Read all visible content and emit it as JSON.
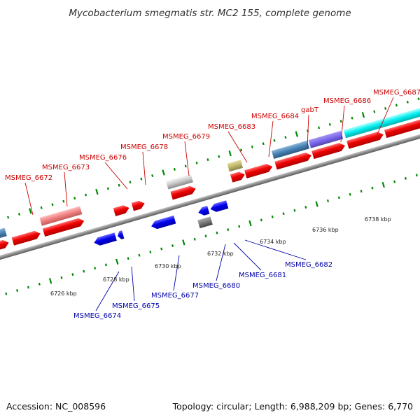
{
  "title": "Mycobacterium smegmatis str. MC2 155, complete genome",
  "accession": "Accession: NC_008596",
  "summary": "Topology: circular; Length: 6,988,209 bp; Genes: 6,770",
  "colors": {
    "forward_label": "#cc0000",
    "reverse_label": "#0000aa",
    "forward_gene": "#ee0000",
    "reverse_gene": "#0000ee",
    "backbone": "#888888",
    "tick": "#008800"
  },
  "scale_labels": [
    {
      "text": "6726 kbp"
    },
    {
      "text": "6728 kbp"
    },
    {
      "text": "6730 kbp"
    },
    {
      "text": "6732 kbp"
    },
    {
      "text": "6734 kbp"
    },
    {
      "text": "6736 kbp"
    },
    {
      "text": "6738 kbp"
    }
  ],
  "forward_labels": [
    {
      "text": "MSMEG_6672"
    },
    {
      "text": "MSMEG_6673"
    },
    {
      "text": "MSMEG_6676"
    },
    {
      "text": "MSMEG_6678"
    },
    {
      "text": "MSMEG_6679"
    },
    {
      "text": "MSMEG_6683"
    },
    {
      "text": "MSMEG_6684"
    },
    {
      "text": "gabT"
    },
    {
      "text": "MSMEG_6686"
    },
    {
      "text": "MSMEG_6687"
    }
  ],
  "reverse_labels": [
    {
      "text": "MSMEG_6674"
    },
    {
      "text": "MSMEG_6675"
    },
    {
      "text": "MSMEG_6677"
    },
    {
      "text": "MSMEG_6680"
    },
    {
      "text": "MSMEG_6681"
    },
    {
      "text": "MSMEG_6682"
    }
  ]
}
